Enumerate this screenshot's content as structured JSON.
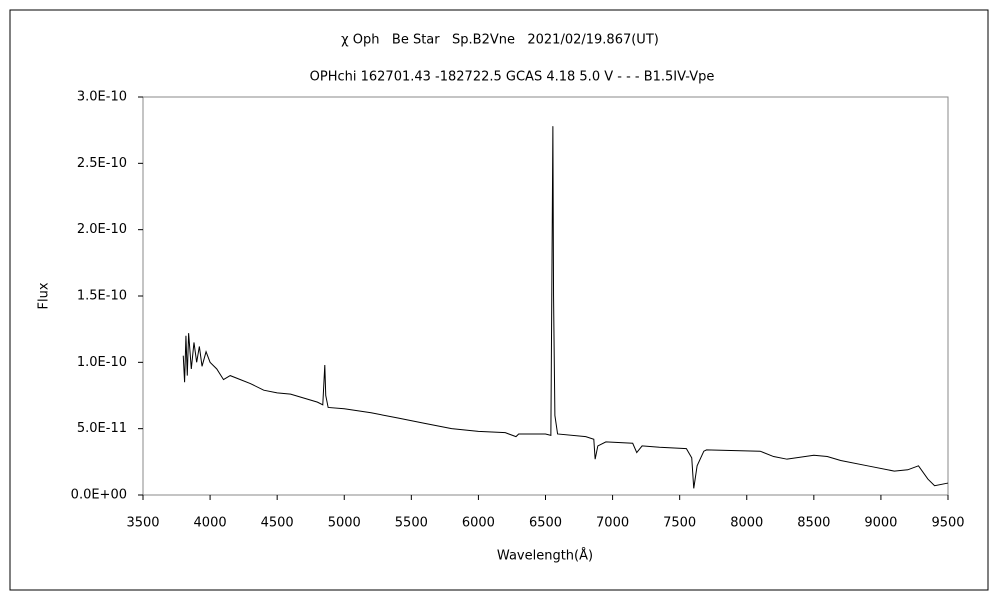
{
  "chart_data": {
    "type": "line",
    "title": "χ Oph   Be Star   Sp.B2Vne   2021/02/19.867(UT)",
    "subtitle": "OPHchi 162701.43 -182722.5 GCAS 4.18 5.0 V - - - B1.5IV-Vpe",
    "x_label": "Wavelength(Å)",
    "y_label": "Flux",
    "xlim": [
      3500,
      9500
    ],
    "xticks": [
      3500,
      4000,
      4500,
      5000,
      5500,
      6000,
      6500,
      7000,
      7500,
      8000,
      8500,
      9000,
      9500
    ],
    "ylim": [
      0,
      3e-10
    ],
    "yticks": [
      {
        "value": 0,
        "label": "0.0E+00"
      },
      {
        "value": 5e-11,
        "label": "5.0E-11"
      },
      {
        "value": 1e-10,
        "label": "1.0E-10"
      },
      {
        "value": 1.5e-10,
        "label": "1.5E-10"
      },
      {
        "value": 2e-10,
        "label": "2.0E-10"
      },
      {
        "value": 2.5e-10,
        "label": "2.5E-10"
      },
      {
        "value": 3e-10,
        "label": "3.0E-10"
      }
    ],
    "grid": false,
    "series": [
      {
        "color": "#000000",
        "x": [
          3800,
          3810,
          3820,
          3830,
          3840,
          3860,
          3880,
          3900,
          3920,
          3940,
          3970,
          4000,
          4050,
          4100,
          4150,
          4200,
          4300,
          4400,
          4500,
          4600,
          4700,
          4800,
          4840,
          4855,
          4862,
          4880,
          5000,
          5200,
          5400,
          5600,
          5800,
          6000,
          6200,
          6280,
          6300,
          6500,
          6540,
          6555,
          6560,
          6570,
          6590,
          6800,
          6860,
          6870,
          6890,
          6950,
          7150,
          7180,
          7220,
          7350,
          7550,
          7590,
          7605,
          7630,
          7680,
          7700,
          8100,
          8200,
          8300,
          8500,
          8600,
          8700,
          8900,
          9100,
          9200,
          9280,
          9350,
          9400,
          9500
        ],
        "values": [
          1.05e-10,
          8.5e-11,
          1.2e-10,
          9e-11,
          1.22e-10,
          9.5e-11,
          1.15e-10,
          1e-10,
          1.12e-10,
          9.7e-11,
          1.08e-10,
          1e-10,
          9.5e-11,
          8.7e-11,
          9e-11,
          8.8e-11,
          8.4e-11,
          7.9e-11,
          7.7e-11,
          7.6e-11,
          7.3e-11,
          7e-11,
          6.8e-11,
          9.8e-11,
          7.5e-11,
          6.6e-11,
          6.5e-11,
          6.2e-11,
          5.8e-11,
          5.4e-11,
          5e-11,
          4.8e-11,
          4.7e-11,
          4.4e-11,
          4.6e-11,
          4.6e-11,
          4.5e-11,
          2.78e-10,
          1.5e-10,
          6e-11,
          4.6e-11,
          4.4e-11,
          4.2e-11,
          2.7e-11,
          3.7e-11,
          4e-11,
          3.9e-11,
          3.2e-11,
          3.7e-11,
          3.6e-11,
          3.5e-11,
          2.8e-11,
          5e-12,
          2.2e-11,
          3.3e-11,
          3.4e-11,
          3.3e-11,
          2.9e-11,
          2.7e-11,
          3e-11,
          2.9e-11,
          2.6e-11,
          2.2e-11,
          1.8e-11,
          1.9e-11,
          2.2e-11,
          1.2e-11,
          7e-12,
          9e-12
        ]
      }
    ]
  }
}
